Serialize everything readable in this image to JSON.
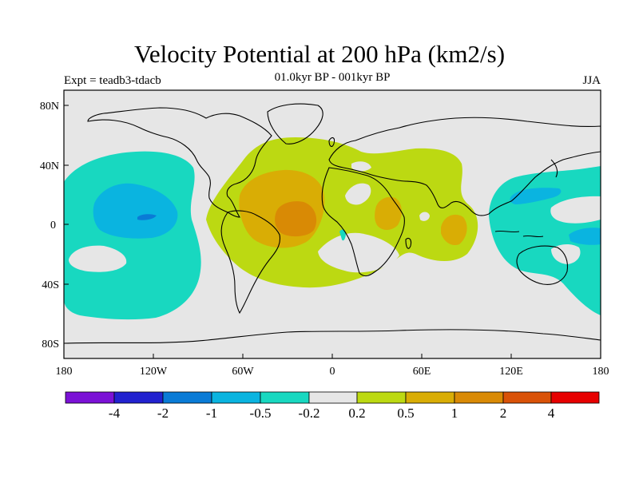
{
  "title": "Velocity Potential at 200 hPa (km2/s)",
  "subtitle": "01.0kyr BP - 001kyr BP",
  "left_label": "Expt = teadb3-tdacb",
  "season": "JJA",
  "colors": {
    "ocean_land_bg": "#e6e6e6",
    "neg_4": "#7b12d6",
    "neg_2": "#2222cf",
    "neg_1": "#0a7bd6",
    "neg_05": "#0ab4e0",
    "neg_02": "#18d8c0",
    "zero": "#e6e6e6",
    "pos_02": "#bcd912",
    "pos_05": "#d9ad05",
    "pos_1": "#d98a05",
    "pos_2": "#d95208",
    "pos_4": "#e60000"
  },
  "map": {
    "lat_ticks": [
      "80N",
      "40N",
      "0",
      "40S",
      "80S"
    ],
    "lon_ticks": [
      "180",
      "120W",
      "60W",
      "0",
      "60E",
      "120E",
      "180"
    ]
  },
  "colorbar": {
    "labels": [
      "-4",
      "-2",
      "-1",
      "-0.5",
      "-0.2",
      "0.2",
      "0.5",
      "1",
      "2",
      "4"
    ],
    "levels": [
      -4,
      -2,
      -1,
      -0.5,
      -0.2,
      0.2,
      0.5,
      1,
      2,
      4
    ]
  },
  "regions": [
    {
      "name": "atlantic-positive-center",
      "level": 1
    },
    {
      "name": "east-africa-positive-center",
      "level": 0.5
    },
    {
      "name": "indian-ocean-positive-center",
      "level": 0.5
    },
    {
      "name": "pacific-negative-center",
      "level": -0.5
    },
    {
      "name": "west-pacific-negative-center",
      "level": -0.5
    }
  ]
}
